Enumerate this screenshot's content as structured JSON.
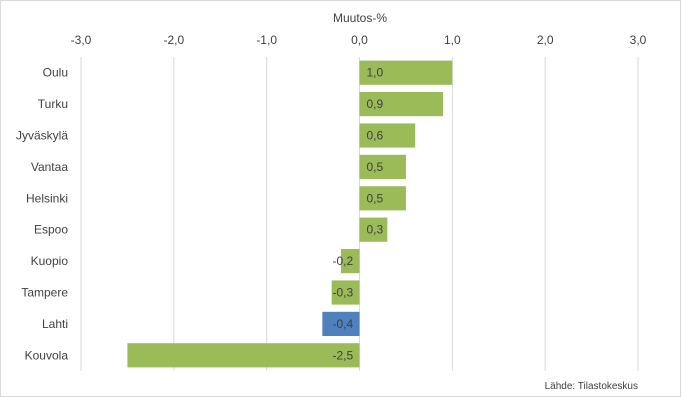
{
  "chart_data": {
    "type": "bar",
    "orientation": "horizontal",
    "xlabel": "Muutos-%",
    "xlabel_position": "top",
    "xlim": [
      -3.0,
      3.0
    ],
    "xticks": [
      -3.0,
      -2.0,
      -1.0,
      0.0,
      1.0,
      2.0,
      3.0
    ],
    "xtick_labels": [
      "-3,0",
      "-2,0",
      "-1,0",
      "0,0",
      "1,0",
      "2,0",
      "3,0"
    ],
    "grid": true,
    "categories": [
      "Oulu",
      "Turku",
      "Jyväskylä",
      "Vantaa",
      "Helsinki",
      "Espoo",
      "Kuopio",
      "Tampere",
      "Lahti",
      "Kouvola"
    ],
    "values": [
      1.0,
      0.9,
      0.6,
      0.5,
      0.5,
      0.3,
      -0.2,
      -0.3,
      -0.4,
      -2.5
    ],
    "value_labels": [
      "1,0",
      "0,9",
      "0,6",
      "0,5",
      "0,5",
      "0,3",
      "-0,2",
      "-0,3",
      "-0,4",
      "-2,5"
    ],
    "colors": {
      "default": "#9bbb59",
      "highlight": "#4f81bd"
    },
    "highlight_category": "Lahti",
    "source": "Lähde: Tilastokeskus"
  }
}
